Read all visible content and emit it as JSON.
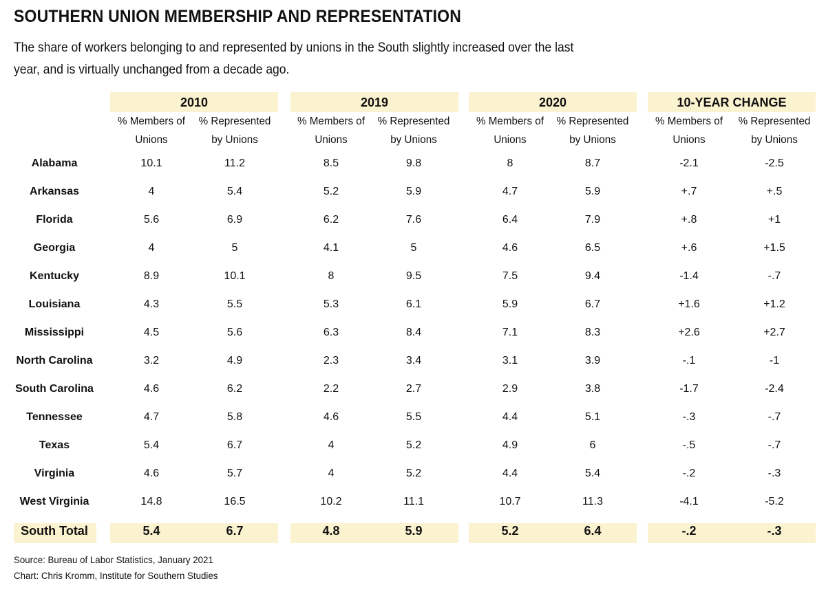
{
  "chart_data": {
    "type": "table",
    "title": "SOUTHERN UNION MEMBERSHIP AND REPRESENTATION",
    "subtitle": "The share of workers belonging to and represented by unions in the South slightly increased over the last year, and is virtually unchanged from a decade ago.",
    "groups": [
      "2010",
      "2019",
      "2020",
      "10-YEAR CHANGE"
    ],
    "subcolumns": [
      "% Members of Unions",
      "% Represented by Unions"
    ],
    "rows": [
      {
        "state": "Alabama",
        "values": [
          "10.1",
          "11.2",
          "8.5",
          "9.8",
          "8",
          "8.7",
          "-2.1",
          "-2.5"
        ]
      },
      {
        "state": "Arkansas",
        "values": [
          "4",
          "5.4",
          "5.2",
          "5.9",
          "4.7",
          "5.9",
          "+.7",
          "+.5"
        ]
      },
      {
        "state": "Florida",
        "values": [
          "5.6",
          "6.9",
          "6.2",
          "7.6",
          "6.4",
          "7.9",
          "+.8",
          "+1"
        ]
      },
      {
        "state": "Georgia",
        "values": [
          "4",
          "5",
          "4.1",
          "5",
          "4.6",
          "6.5",
          "+.6",
          "+1.5"
        ]
      },
      {
        "state": "Kentucky",
        "values": [
          "8.9",
          "10.1",
          "8",
          "9.5",
          "7.5",
          "9.4",
          "-1.4",
          "-.7"
        ]
      },
      {
        "state": "Louisiana",
        "values": [
          "4.3",
          "5.5",
          "5.3",
          "6.1",
          "5.9",
          "6.7",
          "+1.6",
          "+1.2"
        ]
      },
      {
        "state": "Mississippi",
        "values": [
          "4.5",
          "5.6",
          "6.3",
          "8.4",
          "7.1",
          "8.3",
          "+2.6",
          "+2.7"
        ]
      },
      {
        "state": "North Carolina",
        "values": [
          "3.2",
          "4.9",
          "2.3",
          "3.4",
          "3.1",
          "3.9",
          "-.1",
          "-1"
        ]
      },
      {
        "state": "South Carolina",
        "values": [
          "4.6",
          "6.2",
          "2.2",
          "2.7",
          "2.9",
          "3.8",
          "-1.7",
          "-2.4"
        ]
      },
      {
        "state": "Tennessee",
        "values": [
          "4.7",
          "5.8",
          "4.6",
          "5.5",
          "4.4",
          "5.1",
          "-.3",
          "-.7"
        ]
      },
      {
        "state": "Texas",
        "values": [
          "5.4",
          "6.7",
          "4",
          "5.2",
          "4.9",
          "6",
          "-.5",
          "-.7"
        ]
      },
      {
        "state": "Virginia",
        "values": [
          "4.6",
          "5.7",
          "4",
          "5.2",
          "4.4",
          "5.4",
          "-.2",
          "-.3"
        ]
      },
      {
        "state": "West Virginia",
        "values": [
          "14.8",
          "16.5",
          "10.2",
          "11.1",
          "10.7",
          "11.3",
          "-4.1",
          "-5.2"
        ]
      }
    ],
    "total": {
      "state": "South Total",
      "values": [
        "5.4",
        "6.7",
        "4.8",
        "5.9",
        "5.2",
        "6.4",
        "-.2",
        "-.3"
      ]
    },
    "highlight_color": "#fbf2cf"
  },
  "footer": {
    "source": "Source: Bureau of Labor Statistics, January 2021",
    "credit": "Chart: Chris Kromm, Institute for Southern Studies"
  }
}
